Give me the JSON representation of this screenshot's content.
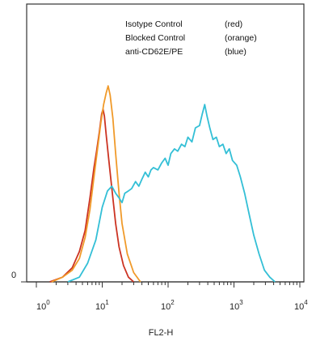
{
  "chart_data": {
    "type": "line",
    "xlabel": "FL2-H",
    "x_scale": "log",
    "xlim": [
      1,
      10000
    ],
    "y_tick_labels": [
      "0"
    ],
    "x_tick_labels": [
      {
        "base": "10",
        "exp": "0"
      },
      {
        "base": "10",
        "exp": "1"
      },
      {
        "base": "10",
        "exp": "2"
      },
      {
        "base": "10",
        "exp": "3"
      },
      {
        "base": "10",
        "exp": "4"
      }
    ],
    "legend": [
      {
        "label": "Isotype Control",
        "note": "(red)"
      },
      {
        "label": "Blocked Control",
        "note": "(orange)"
      },
      {
        "label": "anti-CD62E/PE",
        "note": "(blue)"
      }
    ],
    "series": [
      {
        "name": "Isotype Control",
        "color": "#cc3322",
        "points": [
          [
            1.6,
            0.0
          ],
          [
            2.5,
            0.02
          ],
          [
            3.5,
            0.06
          ],
          [
            4.5,
            0.13
          ],
          [
            5.5,
            0.22
          ],
          [
            6.5,
            0.36
          ],
          [
            7.5,
            0.49
          ],
          [
            8.2,
            0.56
          ],
          [
            9.0,
            0.64
          ],
          [
            9.8,
            0.72
          ],
          [
            10.3,
            0.74
          ],
          [
            10.8,
            0.71
          ],
          [
            11.5,
            0.63
          ],
          [
            12.5,
            0.53
          ],
          [
            14,
            0.4
          ],
          [
            16,
            0.25
          ],
          [
            18,
            0.15
          ],
          [
            21,
            0.07
          ],
          [
            25,
            0.02
          ],
          [
            30,
            0.0
          ]
        ]
      },
      {
        "name": "Blocked Control",
        "color": "#f09a2a",
        "points": [
          [
            1.7,
            0.0
          ],
          [
            2.5,
            0.02
          ],
          [
            3.5,
            0.05
          ],
          [
            4.5,
            0.1
          ],
          [
            5.5,
            0.19
          ],
          [
            6.5,
            0.31
          ],
          [
            7.5,
            0.45
          ],
          [
            8.5,
            0.57
          ],
          [
            9.5,
            0.68
          ],
          [
            10.5,
            0.76
          ],
          [
            11.5,
            0.81
          ],
          [
            12.3,
            0.84
          ],
          [
            13.2,
            0.8
          ],
          [
            14.5,
            0.7
          ],
          [
            16,
            0.55
          ],
          [
            18,
            0.38
          ],
          [
            20,
            0.25
          ],
          [
            24,
            0.12
          ],
          [
            30,
            0.04
          ],
          [
            38,
            0.0
          ]
        ]
      },
      {
        "name": "anti-CD62E/PE",
        "color": "#33bfd6",
        "points": [
          [
            3,
            0.0
          ],
          [
            4.5,
            0.02
          ],
          [
            6,
            0.08
          ],
          [
            8,
            0.18
          ],
          [
            10,
            0.32
          ],
          [
            12,
            0.39
          ],
          [
            14,
            0.41
          ],
          [
            16,
            0.38
          ],
          [
            18,
            0.36
          ],
          [
            20,
            0.34
          ],
          [
            22,
            0.38
          ],
          [
            25,
            0.39
          ],
          [
            28,
            0.4
          ],
          [
            32,
            0.43
          ],
          [
            36,
            0.41
          ],
          [
            40,
            0.44
          ],
          [
            45,
            0.47
          ],
          [
            50,
            0.45
          ],
          [
            55,
            0.48
          ],
          [
            60,
            0.49
          ],
          [
            70,
            0.48
          ],
          [
            80,
            0.51
          ],
          [
            90,
            0.53
          ],
          [
            100,
            0.5
          ],
          [
            110,
            0.55
          ],
          [
            125,
            0.57
          ],
          [
            140,
            0.56
          ],
          [
            160,
            0.59
          ],
          [
            180,
            0.58
          ],
          [
            200,
            0.62
          ],
          [
            230,
            0.6
          ],
          [
            260,
            0.66
          ],
          [
            300,
            0.67
          ],
          [
            330,
            0.72
          ],
          [
            360,
            0.76
          ],
          [
            390,
            0.71
          ],
          [
            430,
            0.66
          ],
          [
            480,
            0.61
          ],
          [
            540,
            0.62
          ],
          [
            600,
            0.58
          ],
          [
            680,
            0.59
          ],
          [
            760,
            0.55
          ],
          [
            850,
            0.57
          ],
          [
            950,
            0.52
          ],
          [
            1100,
            0.5
          ],
          [
            1250,
            0.45
          ],
          [
            1450,
            0.38
          ],
          [
            1700,
            0.29
          ],
          [
            2000,
            0.2
          ],
          [
            2400,
            0.12
          ],
          [
            2900,
            0.05
          ],
          [
            3500,
            0.02
          ],
          [
            4200,
            0.0
          ]
        ]
      }
    ],
    "ylim": [
      0,
      1
    ]
  }
}
